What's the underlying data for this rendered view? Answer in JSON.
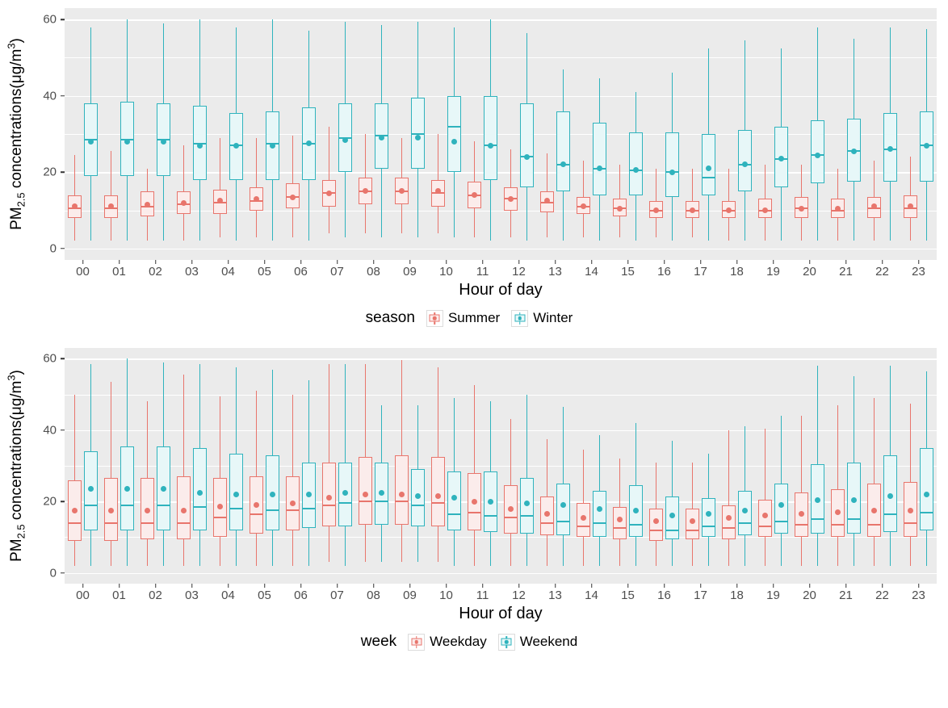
{
  "ylabel": {
    "p1": "PM",
    "sub": "2.5",
    "p2": " concentrations(μg/m",
    "sup": "3",
    "p3": ")"
  },
  "chart_data": [
    {
      "type": "boxplot",
      "title": "",
      "xlabel": "Hour of day",
      "ylabel": "PM2.5 concentrations(μg/m³)",
      "ylim": [
        0,
        60
      ],
      "y_major_ticks": [
        0,
        20,
        40,
        60
      ],
      "y_minor_ticks": [
        10,
        30,
        50
      ],
      "grid": true,
      "legend": {
        "title": "season",
        "position": "bottom"
      },
      "categories": [
        "00",
        "01",
        "02",
        "03",
        "04",
        "05",
        "06",
        "07",
        "08",
        "09",
        "10",
        "11",
        "12",
        "13",
        "14",
        "15",
        "16",
        "17",
        "18",
        "19",
        "20",
        "21",
        "22",
        "23"
      ],
      "series": [
        {
          "name": "Summer",
          "color": "#E8756C",
          "fill": "#FBECEB",
          "lo": [
            2,
            2,
            2,
            2,
            3,
            3,
            3,
            4,
            4,
            4,
            4,
            3,
            3,
            3,
            3,
            3,
            3,
            3,
            2,
            2,
            2,
            2,
            2,
            2
          ],
          "q1": [
            8,
            8,
            8.5,
            9,
            9,
            10,
            10.5,
            11,
            11.5,
            11.5,
            11,
            10.5,
            10,
            9.5,
            9,
            8.5,
            8,
            8,
            8,
            8,
            8,
            8,
            8,
            8
          ],
          "median": [
            10.5,
            10.5,
            11,
            11.5,
            12,
            12.5,
            13.5,
            14.5,
            15,
            15,
            14.5,
            14,
            13,
            12,
            11,
            10.5,
            10,
            10,
            10,
            10,
            10.5,
            10,
            10.5,
            10.5
          ],
          "q3": [
            14,
            14,
            15,
            15,
            15.5,
            16,
            17,
            18,
            18.5,
            18.5,
            18,
            17.5,
            16,
            15,
            13.5,
            13,
            12.5,
            12.5,
            12.5,
            13,
            13.5,
            13,
            13.5,
            14
          ],
          "hi": [
            24.5,
            25.5,
            21,
            27,
            29,
            29,
            29.5,
            32,
            30,
            29,
            30,
            28,
            26,
            25,
            23,
            22,
            21,
            21,
            21,
            22,
            22,
            21,
            23,
            24
          ],
          "mean": [
            11,
            11,
            11.5,
            12,
            12.5,
            13,
            13.5,
            14.5,
            15,
            15,
            15,
            14,
            13,
            12.5,
            11,
            10.5,
            10,
            10,
            10,
            10,
            10.5,
            10.5,
            11,
            11
          ]
        },
        {
          "name": "Winter",
          "color": "#2FB3BD",
          "fill": "#E7F7F8",
          "lo": [
            2,
            2,
            2,
            2,
            2,
            2,
            2,
            3,
            3,
            3,
            3,
            2,
            2,
            2,
            2,
            2,
            2,
            2,
            2,
            2,
            2,
            2,
            2,
            2
          ],
          "q1": [
            19,
            19,
            19,
            18,
            18,
            18,
            18,
            20,
            21,
            21,
            20,
            18,
            16,
            15,
            14,
            14,
            13.5,
            14,
            15,
            16,
            17,
            17.5,
            17.5,
            17.5
          ],
          "median": [
            28.5,
            28.5,
            28.5,
            27.5,
            27,
            27.5,
            27.5,
            29,
            29.5,
            30,
            32,
            27,
            24,
            22,
            21,
            20.5,
            20,
            18.5,
            22,
            23.5,
            24.5,
            25.5,
            26,
            27
          ],
          "q3": [
            38,
            38.5,
            38,
            37.5,
            35.5,
            36,
            37,
            38,
            38,
            39.5,
            40,
            40,
            38,
            36,
            33,
            30.5,
            30.5,
            30,
            31,
            32,
            33.5,
            34,
            35.5,
            36
          ],
          "hi": [
            58,
            60,
            59,
            60,
            58,
            60,
            57,
            59.5,
            58.5,
            59.5,
            58,
            60,
            56.5,
            47,
            44.5,
            41,
            46,
            52.5,
            54.5,
            52.5,
            58,
            55,
            58,
            57.5
          ],
          "mean": [
            28,
            28,
            28,
            27,
            27,
            27,
            27.5,
            28.5,
            29,
            29,
            28,
            27,
            24,
            22,
            21,
            20.5,
            20,
            21,
            22,
            23.5,
            24.5,
            25.5,
            26,
            27
          ]
        }
      ]
    },
    {
      "type": "boxplot",
      "title": "",
      "xlabel": "Hour of day",
      "ylabel": "PM2.5 concentrations(μg/m³)",
      "ylim": [
        0,
        60
      ],
      "y_major_ticks": [
        0,
        20,
        40,
        60
      ],
      "y_minor_ticks": [
        10,
        30,
        50
      ],
      "grid": true,
      "legend": {
        "title": "week",
        "position": "bottom"
      },
      "categories": [
        "00",
        "01",
        "02",
        "03",
        "04",
        "05",
        "06",
        "07",
        "08",
        "09",
        "10",
        "11",
        "12",
        "13",
        "14",
        "15",
        "16",
        "17",
        "18",
        "19",
        "20",
        "21",
        "22",
        "23"
      ],
      "series": [
        {
          "name": "Weekday",
          "color": "#E8756C",
          "fill": "#FBECEB",
          "lo": [
            2,
            2,
            2,
            2,
            2,
            2,
            2,
            3,
            3,
            3,
            3,
            2,
            2,
            2,
            2,
            2,
            2,
            2,
            2,
            2,
            2,
            2,
            2,
            2
          ],
          "q1": [
            9,
            9,
            9.5,
            9.5,
            10,
            11,
            12,
            13,
            13.5,
            13.5,
            13,
            12,
            11,
            10.5,
            10,
            9.5,
            9,
            9.5,
            9.5,
            10,
            10,
            10,
            10,
            10
          ],
          "median": [
            14,
            14,
            14,
            14,
            15.5,
            16.5,
            17.5,
            19,
            20,
            20,
            19.5,
            17,
            15.5,
            14,
            13,
            12.5,
            12,
            12,
            12.5,
            13,
            13.5,
            13.5,
            13.5,
            14
          ],
          "q3": [
            26,
            26.5,
            26.5,
            27,
            26.5,
            27,
            27,
            31,
            32.5,
            33,
            32.5,
            28,
            24.5,
            21.5,
            19.5,
            18.5,
            18,
            18,
            19,
            20.5,
            22.5,
            23.5,
            25,
            25.5
          ],
          "hi": [
            50,
            53.5,
            48,
            55.5,
            49.5,
            51,
            50,
            58.5,
            58.5,
            59.5,
            57.5,
            52.5,
            43,
            37.5,
            34.5,
            32,
            31,
            31,
            40,
            40.5,
            44,
            47,
            49,
            47.5
          ],
          "mean": [
            17.5,
            17.5,
            17.5,
            17.5,
            18.5,
            19,
            19.5,
            21,
            22,
            22,
            21.5,
            20,
            18,
            16.5,
            15.5,
            15,
            14.5,
            14.5,
            15.5,
            16,
            16.5,
            17,
            17.5,
            17.5
          ]
        },
        {
          "name": "Weekend",
          "color": "#2FB3BD",
          "fill": "#E7F7F8",
          "lo": [
            2,
            2,
            2,
            2,
            2,
            2,
            2,
            2,
            3,
            3,
            2,
            2,
            2,
            2,
            2,
            2,
            2,
            2,
            2,
            2,
            2,
            2,
            2,
            2
          ],
          "q1": [
            12,
            12,
            12,
            12,
            12,
            12,
            12.5,
            13,
            13.5,
            13,
            12,
            11.5,
            11,
            10.5,
            10,
            10,
            9.5,
            10,
            10.5,
            11,
            11,
            11,
            11.5,
            12
          ],
          "median": [
            19,
            19,
            19,
            18.5,
            18,
            17.5,
            18,
            19.5,
            20,
            19,
            16.5,
            16,
            16,
            14.5,
            14,
            13.5,
            12,
            13,
            14,
            14.5,
            15,
            15,
            16.5,
            17
          ],
          "q3": [
            34,
            35.5,
            35.5,
            35,
            33.5,
            33,
            31,
            31,
            31,
            29,
            28.5,
            28.5,
            26.5,
            25,
            23,
            24.5,
            21.5,
            21,
            23,
            25,
            30.5,
            31,
            33,
            35
          ],
          "hi": [
            58.5,
            60,
            59,
            58.5,
            57.5,
            57,
            54,
            58.5,
            47,
            47,
            49,
            48,
            50,
            46.5,
            38.5,
            42,
            37,
            33.5,
            41,
            44,
            58,
            55,
            58,
            56.5
          ],
          "mean": [
            23.5,
            23.5,
            23.5,
            22.5,
            22,
            22,
            22,
            22.5,
            22.5,
            21.5,
            21,
            20,
            19.5,
            19,
            18,
            17.5,
            16,
            16.5,
            17.5,
            19,
            20.5,
            20.5,
            21.5,
            22
          ]
        }
      ]
    }
  ],
  "style": {
    "panel_background": "#EBEBEB",
    "grid_color": "#FFFFFF",
    "tick_label_color": "#4D4D4D"
  }
}
